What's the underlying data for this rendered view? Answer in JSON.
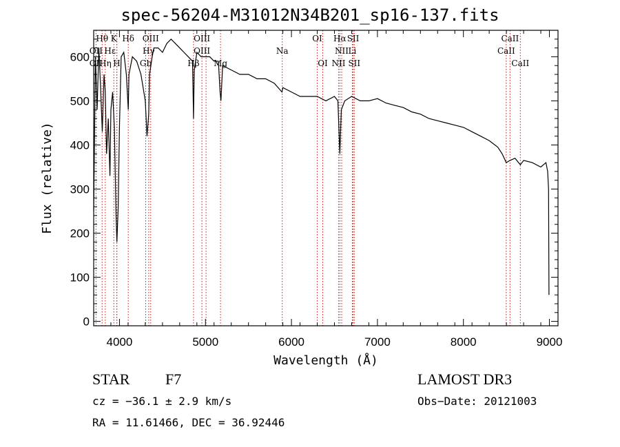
{
  "chart_data": {
    "type": "line",
    "title": "spec-56204-M31012N34B201_sp16-137.fits",
    "xlabel": "Wavelength (Å)",
    "ylabel": "Flux (relative)",
    "xlim": [
      3700,
      9100
    ],
    "ylim": [
      -10,
      660
    ],
    "xticks": [
      4000,
      5000,
      6000,
      7000,
      8000,
      9000
    ],
    "yticks": [
      0,
      100,
      200,
      300,
      400,
      500,
      600
    ],
    "grid": false,
    "series": [
      {
        "name": "flux",
        "x": [
          3700,
          3720,
          3740,
          3760,
          3780,
          3800,
          3820,
          3835,
          3850,
          3870,
          3889,
          3900,
          3920,
          3940,
          3960,
          3970,
          3985,
          4000,
          4020,
          4050,
          4080,
          4102,
          4110,
          4150,
          4200,
          4250,
          4300,
          4320,
          4340,
          4350,
          4380,
          4400,
          4450,
          4500,
          4550,
          4600,
          4650,
          4700,
          4750,
          4800,
          4850,
          4861,
          4870,
          4900,
          4950,
          5000,
          5050,
          5100,
          5150,
          5170,
          5180,
          5200,
          5300,
          5400,
          5500,
          5600,
          5700,
          5800,
          5890,
          5900,
          6000,
          6100,
          6200,
          6300,
          6400,
          6500,
          6540,
          6563,
          6580,
          6620,
          6700,
          6800,
          6900,
          7000,
          7100,
          7200,
          7300,
          7400,
          7500,
          7600,
          7700,
          7800,
          7900,
          8000,
          8100,
          8200,
          8300,
          8400,
          8450,
          8498,
          8542,
          8600,
          8662,
          8700,
          8800,
          8900,
          8960,
          8980,
          8990,
          8995
        ],
        "values": [
          250,
          600,
          480,
          620,
          530,
          430,
          560,
          520,
          380,
          460,
          330,
          480,
          520,
          440,
          240,
          180,
          260,
          440,
          600,
          610,
          560,
          480,
          560,
          600,
          590,
          560,
          500,
          420,
          470,
          560,
          600,
          620,
          620,
          610,
          630,
          640,
          630,
          620,
          610,
          600,
          590,
          460,
          570,
          610,
          600,
          600,
          600,
          590,
          590,
          520,
          500,
          580,
          570,
          560,
          560,
          550,
          550,
          540,
          520,
          530,
          520,
          510,
          510,
          510,
          500,
          510,
          500,
          380,
          480,
          500,
          510,
          500,
          500,
          505,
          495,
          490,
          485,
          475,
          470,
          460,
          455,
          450,
          445,
          440,
          430,
          420,
          410,
          395,
          380,
          360,
          365,
          370,
          355,
          365,
          360,
          350,
          360,
          340,
          300,
          60
        ]
      }
    ],
    "lines": [
      {
        "name": "Hθ",
        "x": 3798
      },
      {
        "name": "Hη",
        "x": 3835
      },
      {
        "name": "OII",
        "x": 3727
      },
      {
        "name": "CaII K",
        "x": 3934
      },
      {
        "name": "CaII H",
        "x": 3968
      },
      {
        "name": "Hε",
        "x": 3970
      },
      {
        "name": "Hδ",
        "x": 4102
      },
      {
        "name": "OIII",
        "x": 4363
      },
      {
        "name": "Hγ",
        "x": 4340
      },
      {
        "name": "Gband",
        "x": 4305
      },
      {
        "name": "Hβ",
        "x": 4861
      },
      {
        "name": "OIII",
        "x": 4959
      },
      {
        "name": "OIII",
        "x": 5007
      },
      {
        "name": "Mg",
        "x": 5175
      },
      {
        "name": "Na",
        "x": 5893
      },
      {
        "name": "OI",
        "x": 6300
      },
      {
        "name": "OI",
        "x": 6364
      },
      {
        "name": "NII",
        "x": 6548
      },
      {
        "name": "Hα",
        "x": 6563
      },
      {
        "name": "NII",
        "x": 6584
      },
      {
        "name": "SII",
        "x": 6717
      },
      {
        "name": "SII",
        "x": 6731
      },
      {
        "name": "Li",
        "x": 6708
      },
      {
        "name": "CaII",
        "x": 8498
      },
      {
        "name": "CaII",
        "x": 8542
      },
      {
        "name": "CaII",
        "x": 8662
      }
    ],
    "annotations": [
      {
        "text": "Hθ",
        "x": 3798,
        "row": 1
      },
      {
        "text": "K",
        "x": 3934,
        "row": 1
      },
      {
        "text": "Hδ",
        "x": 4102,
        "row": 1
      },
      {
        "text": "OIII",
        "x": 4363,
        "row": 1
      },
      {
        "text": "OIII",
        "x": 4959,
        "row": 1
      },
      {
        "text": "OI",
        "x": 6300,
        "row": 1
      },
      {
        "text": "Hα",
        "x": 6563,
        "row": 1
      },
      {
        "text": "SII",
        "x": 6717,
        "row": 1
      },
      {
        "text": "CaII",
        "x": 8542,
        "row": 1
      },
      {
        "text": "OII",
        "x": 3727,
        "row": 2
      },
      {
        "text": "Hε",
        "x": 3890,
        "row": 2
      },
      {
        "text": "Hγ",
        "x": 4340,
        "row": 2
      },
      {
        "text": "OIII",
        "x": 4959,
        "row": 2
      },
      {
        "text": "Na",
        "x": 5893,
        "row": 2
      },
      {
        "text": "NII",
        "x": 6584,
        "row": 2
      },
      {
        "text": "Li",
        "x": 6708,
        "row": 2
      },
      {
        "text": "CaII",
        "x": 8498,
        "row": 2
      },
      {
        "text": "OII",
        "x": 3727,
        "row": 3
      },
      {
        "text": "Hη",
        "x": 3835,
        "row": 3
      },
      {
        "text": "H",
        "x": 3968,
        "row": 3
      },
      {
        "text": "Gb",
        "x": 4305,
        "row": 3
      },
      {
        "text": "Hβ",
        "x": 4861,
        "row": 3
      },
      {
        "text": "Mg",
        "x": 5175,
        "row": 3
      },
      {
        "text": "OI",
        "x": 6364,
        "row": 3
      },
      {
        "text": "NII",
        "x": 6548,
        "row": 3
      },
      {
        "text": "SII",
        "x": 6731,
        "row": 3
      },
      {
        "text": "CaII",
        "x": 8662,
        "row": 3
      }
    ]
  },
  "footer": {
    "class": "STAR",
    "subclass": "F7",
    "survey": "LAMOST DR3",
    "cz": "cz = −36.1 ± 2.9 km/s",
    "obsdate": "Obs−Date: 20121003",
    "radec": "RA =  11.61466, DEC =  36.92446"
  }
}
